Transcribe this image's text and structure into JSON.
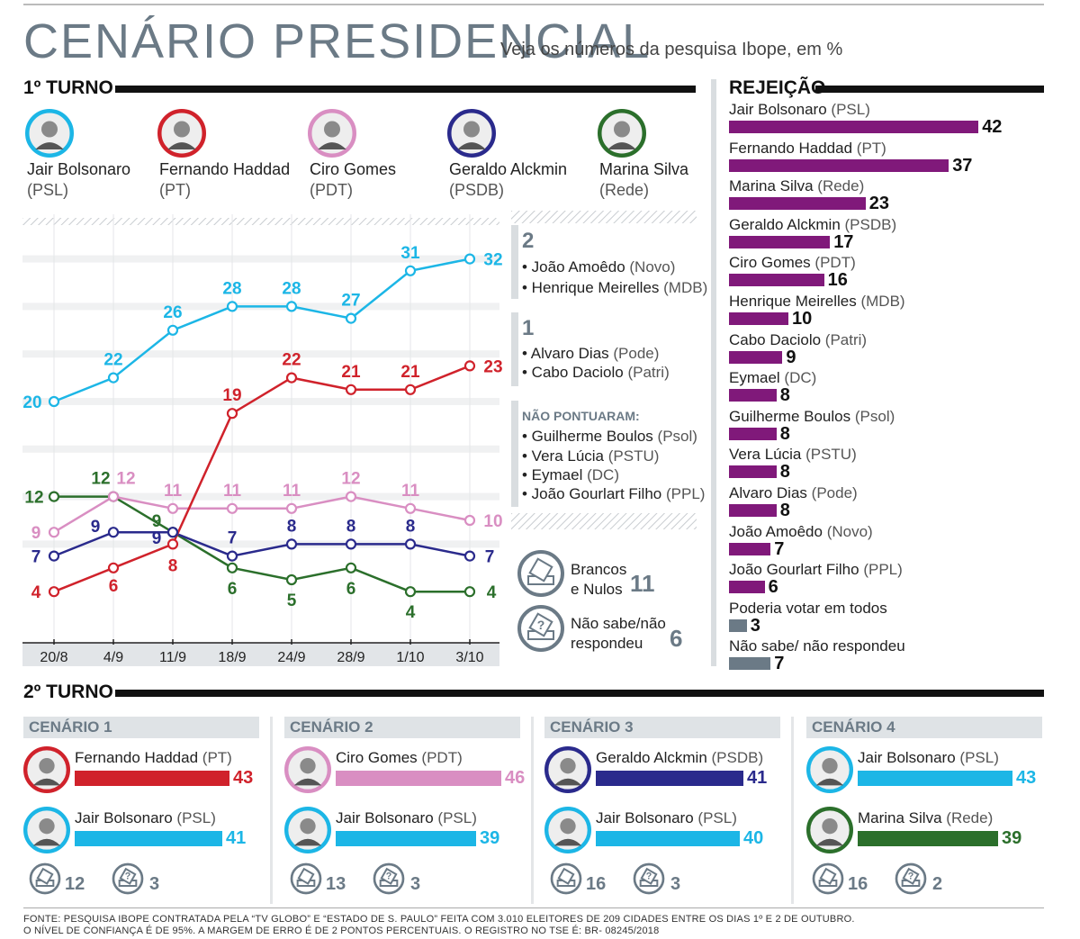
{
  "header": {
    "title": "CENÁRIO PRESIDENCIAL",
    "subtitle": "Veja os números da pesquisa Ibope, em %"
  },
  "first_round": {
    "heading": "1º TURNO",
    "candidates": [
      {
        "name": "Jair Bolsonaro",
        "party": "(PSL)",
        "color": "#1cb6e6"
      },
      {
        "name": "Fernando Haddad",
        "party": "(PT)",
        "color": "#d0222b"
      },
      {
        "name": "Ciro Gomes",
        "party": "(PDT)",
        "color": "#d98ec2"
      },
      {
        "name": "Geraldo Alckmin",
        "party": "(PSDB)",
        "color": "#2a2a8c"
      },
      {
        "name": "Marina Silva",
        "party": "(Rede)",
        "color": "#2b6f2b"
      }
    ],
    "side_groups": [
      {
        "value": "2",
        "items": [
          {
            "name": "• João Amoêdo",
            "party": "(Novo)"
          },
          {
            "name": "• Henrique Meirelles",
            "party": "(MDB)"
          }
        ]
      },
      {
        "value": "1",
        "items": [
          {
            "name": "• Alvaro Dias",
            "party": "(Pode)"
          },
          {
            "name": "• Cabo Daciolo",
            "party": "(Patri)"
          }
        ]
      }
    ],
    "not_scored": {
      "title": "NÃO PONTUARAM:",
      "items": [
        {
          "name": "• Guilherme Boulos",
          "party": "(Psol)"
        },
        {
          "name": "• Vera Lúcia",
          "party": "(PSTU)"
        },
        {
          "name": "• Eymael",
          "party": "(DC)"
        },
        {
          "name": "• João Gourlart Filho",
          "party": "(PPL)"
        }
      ]
    },
    "blank_null": {
      "label1": "Brancos",
      "label2": "e Nulos",
      "value": "11"
    },
    "dont_know": {
      "label1": "Não sabe/não",
      "label2": "respondeu",
      "value": "6"
    }
  },
  "chart_data": [
    {
      "type": "line",
      "title": "1º TURNO",
      "categories": [
        "20/8",
        "4/9",
        "11/9",
        "18/9",
        "24/9",
        "28/9",
        "1/10",
        "3/10"
      ],
      "ylim": [
        0,
        36
      ],
      "series": [
        {
          "name": "Jair Bolsonaro",
          "color": "#1cb6e6",
          "values": [
            20,
            22,
            26,
            28,
            28,
            27,
            31,
            32
          ]
        },
        {
          "name": "Fernando Haddad",
          "color": "#d0222b",
          "values": [
            4,
            6,
            8,
            19,
            22,
            21,
            21,
            23
          ]
        },
        {
          "name": "Ciro Gomes",
          "color": "#d98ec2",
          "values": [
            9,
            12,
            11,
            11,
            11,
            12,
            11,
            10
          ]
        },
        {
          "name": "Geraldo Alckmin",
          "color": "#2a2a8c",
          "values": [
            7,
            9,
            9,
            7,
            8,
            8,
            8,
            7
          ]
        },
        {
          "name": "Marina Silva",
          "color": "#2b6f2b",
          "values": [
            12,
            12,
            9,
            6,
            5,
            6,
            4,
            4
          ]
        }
      ]
    },
    {
      "type": "bar",
      "title": "REJEIÇÃO",
      "orientation": "horizontal",
      "categories": [
        "Jair Bolsonaro",
        "Fernando Haddad",
        "Marina Silva",
        "Geraldo Alckmin",
        "Ciro Gomes",
        "Henrique Meirelles",
        "Cabo Daciolo",
        "Eymael",
        "Guilherme Boulos",
        "Vera Lúcia",
        "Alvaro Dias",
        "João Amoêdo",
        "João Gourlart Filho",
        "Poderia votar em todos",
        "Não sabe/ não respondeu"
      ],
      "parties": [
        "(PSL)",
        "(PT)",
        "(Rede)",
        "(PSDB)",
        "(PDT)",
        "(MDB)",
        "(Patri)",
        "(DC)",
        "(Psol)",
        "(PSTU)",
        "(Pode)",
        "(Novo)",
        "(PPL)",
        "",
        ""
      ],
      "values": [
        42,
        37,
        23,
        17,
        16,
        10,
        9,
        8,
        8,
        8,
        8,
        7,
        6,
        3,
        7
      ],
      "colors": [
        "#80197a",
        "#80197a",
        "#80197a",
        "#80197a",
        "#80197a",
        "#80197a",
        "#80197a",
        "#80197a",
        "#80197a",
        "#80197a",
        "#80197a",
        "#80197a",
        "#80197a",
        "#6b7a86",
        "#6b7a86"
      ],
      "xlim": [
        0,
        45
      ]
    },
    {
      "type": "bar",
      "title": "2º TURNO",
      "scenarios": [
        {
          "label": "CENÁRIO 1",
          "candidates": [
            {
              "name": "Fernando Haddad",
              "party": "(PT)",
              "value": 43,
              "color": "#d0222b"
            },
            {
              "name": "Jair Bolsonaro",
              "party": "(PSL)",
              "value": 41,
              "color": "#1cb6e6"
            }
          ],
          "blank": 12,
          "dont_know": 3
        },
        {
          "label": "CENÁRIO 2",
          "candidates": [
            {
              "name": "Ciro Gomes",
              "party": "(PDT)",
              "value": 46,
              "color": "#d98ec2"
            },
            {
              "name": "Jair Bolsonaro",
              "party": "(PSL)",
              "value": 39,
              "color": "#1cb6e6"
            }
          ],
          "blank": 13,
          "dont_know": 3
        },
        {
          "label": "CENÁRIO 3",
          "candidates": [
            {
              "name": "Geraldo Alckmin",
              "party": "(PSDB)",
              "value": 41,
              "color": "#2a2a8c"
            },
            {
              "name": "Jair Bolsonaro",
              "party": "(PSL)",
              "value": 40,
              "color": "#1cb6e6"
            }
          ],
          "blank": 16,
          "dont_know": 3
        },
        {
          "label": "CENÁRIO 4",
          "candidates": [
            {
              "name": "Jair Bolsonaro",
              "party": "(PSL)",
              "value": 43,
              "color": "#1cb6e6"
            },
            {
              "name": "Marina Silva",
              "party": "(Rede)",
              "value": 39,
              "color": "#2b6f2b"
            }
          ],
          "blank": 16,
          "dont_know": 2
        }
      ]
    }
  ],
  "rejection": {
    "heading": "REJEIÇÃO"
  },
  "second_round": {
    "heading": "2º TURNO"
  },
  "footer": {
    "line1": "FONTE: PESQUISA IBOPE CONTRATADA PELA “TV GLOBO” E “ESTADO DE S. PAULO” FEITA COM 3.010 ELEITORES DE 209 CIDADES ENTRE OS DIAS 1º E 2 DE OUTUBRO.",
    "line2": "O NÍVEL DE CONFIANÇA É DE 95%. A MARGEM DE ERRO É DE 2 PONTOS PERCENTUAIS. O REGISTRO NO TSE É: BR- 08245/2018"
  }
}
